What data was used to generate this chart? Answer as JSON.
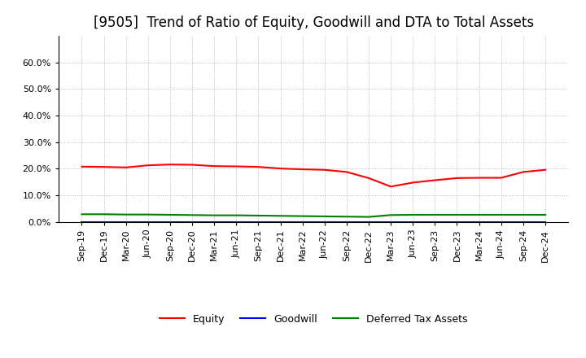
{
  "title": "[9505]  Trend of Ratio of Equity, Goodwill and DTA to Total Assets",
  "x_labels": [
    "Sep-19",
    "Dec-19",
    "Mar-20",
    "Jun-20",
    "Sep-20",
    "Dec-20",
    "Mar-21",
    "Jun-21",
    "Sep-21",
    "Dec-21",
    "Mar-22",
    "Jun-22",
    "Sep-22",
    "Dec-22",
    "Mar-23",
    "Jun-23",
    "Sep-23",
    "Dec-23",
    "Mar-24",
    "Jun-24",
    "Sep-24",
    "Dec-24"
  ],
  "equity": [
    0.208,
    0.207,
    0.205,
    0.213,
    0.216,
    0.215,
    0.21,
    0.209,
    0.207,
    0.201,
    0.198,
    0.196,
    0.188,
    0.165,
    0.133,
    0.148,
    0.157,
    0.165,
    0.166,
    0.166,
    0.188,
    0.196
  ],
  "goodwill": [
    0.0,
    0.0,
    0.0,
    0.0,
    0.0,
    0.0,
    0.0,
    0.0,
    0.0,
    0.0,
    0.0,
    0.0,
    0.0,
    0.0,
    0.0,
    0.0,
    0.0,
    0.0,
    0.0,
    0.0,
    0.0,
    0.0
  ],
  "dta": [
    0.029,
    0.029,
    0.028,
    0.028,
    0.027,
    0.026,
    0.025,
    0.025,
    0.024,
    0.023,
    0.022,
    0.021,
    0.02,
    0.019,
    0.026,
    0.027,
    0.027,
    0.027,
    0.027,
    0.027,
    0.027,
    0.027
  ],
  "equity_color": "#FF0000",
  "goodwill_color": "#0000FF",
  "dta_color": "#008000",
  "ylim": [
    0.0,
    0.7
  ],
  "yticks": [
    0.0,
    0.1,
    0.2,
    0.3,
    0.4,
    0.5,
    0.6
  ],
  "ytick_labels": [
    "0.0%",
    "10.0%",
    "20.0%",
    "30.0%",
    "40.0%",
    "50.0%",
    "60.0%"
  ],
  "background_color": "#FFFFFF",
  "grid_color": "#AAAAAA",
  "title_fontsize": 12,
  "axis_fontsize": 8,
  "legend_fontsize": 9
}
